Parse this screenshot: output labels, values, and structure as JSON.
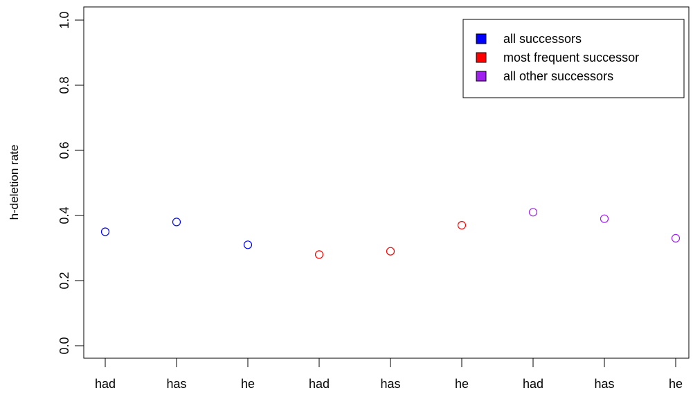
{
  "chart_data": {
    "type": "scatter",
    "title": "",
    "xlabel": "",
    "ylabel": "h-deletion rate",
    "ylim": [
      0,
      1
    ],
    "y_ticks": [
      "0.0",
      "0.2",
      "0.4",
      "0.6",
      "0.8",
      "1.0"
    ],
    "categories": [
      "had",
      "has",
      "he",
      "had",
      "has",
      "he",
      "had",
      "has",
      "he"
    ],
    "grid": false,
    "legend_position": "top-right",
    "series": [
      {
        "name": "all successors",
        "color": "#0000ff",
        "marker": "open-circle",
        "x_index": [
          0,
          1,
          2
        ],
        "values": [
          0.35,
          0.38,
          0.31
        ]
      },
      {
        "name": "most frequent successor",
        "color": "#ff0000",
        "marker": "open-circle",
        "x_index": [
          3,
          4,
          5
        ],
        "values": [
          0.28,
          0.29,
          0.37
        ]
      },
      {
        "name": "all other successors",
        "color": "#a020f0",
        "marker": "open-circle",
        "x_index": [
          6,
          7,
          8
        ],
        "values": [
          0.41,
          0.39,
          0.33
        ]
      }
    ]
  }
}
